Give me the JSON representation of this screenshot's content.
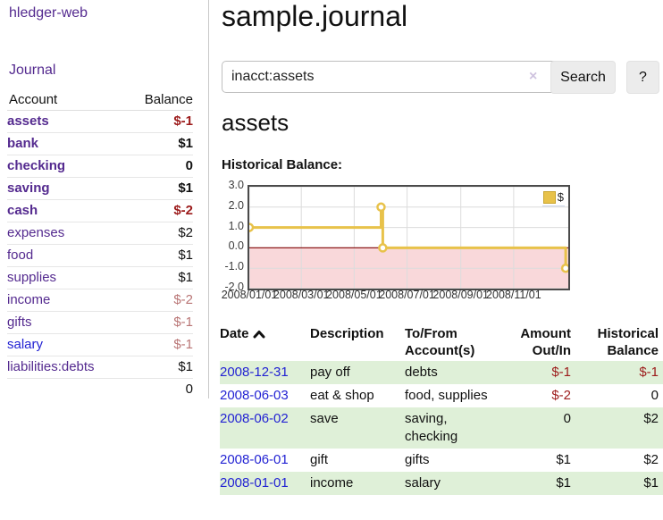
{
  "app": {
    "brand": "hledger-web",
    "nav_journal": "Journal"
  },
  "sidebar": {
    "accounts_header": {
      "account": "Account",
      "balance": "Balance"
    },
    "accounts": [
      {
        "name": "assets",
        "balance": "$-1",
        "depth": 1,
        "bold": true,
        "balance_style": "neg-strong",
        "link": "visited"
      },
      {
        "name": "bank",
        "balance": "$1",
        "depth": 2,
        "bold": true,
        "balance_style": "",
        "link": "visited"
      },
      {
        "name": "checking",
        "balance": "0",
        "depth": 3,
        "bold": true,
        "balance_style": "",
        "link": "visited"
      },
      {
        "name": "saving",
        "balance": "$1",
        "depth": 3,
        "bold": true,
        "balance_style": "",
        "link": "visited"
      },
      {
        "name": "cash",
        "balance": "$-2",
        "depth": 2,
        "bold": true,
        "balance_style": "neg-strong",
        "link": "visited"
      },
      {
        "name": "expenses",
        "balance": "$2",
        "depth": 1,
        "bold": false,
        "balance_style": "",
        "link": "visited"
      },
      {
        "name": "food",
        "balance": "$1",
        "depth": 2,
        "bold": false,
        "balance_style": "",
        "link": "visited"
      },
      {
        "name": "supplies",
        "balance": "$1",
        "depth": 2,
        "bold": false,
        "balance_style": "",
        "link": "visited"
      },
      {
        "name": "income",
        "balance": "$-2",
        "depth": 1,
        "bold": false,
        "balance_style": "neg-soft",
        "link": "visited"
      },
      {
        "name": "gifts",
        "balance": "$-1",
        "depth": 2,
        "bold": false,
        "balance_style": "neg-soft",
        "link": "visited"
      },
      {
        "name": "salary",
        "balance": "$-1",
        "depth": 2,
        "bold": false,
        "balance_style": "neg-soft",
        "link": "unvisited"
      },
      {
        "name": "liabilities:debts",
        "balance": "$1",
        "depth": 1,
        "bold": false,
        "balance_style": "",
        "link": "visited"
      }
    ],
    "total": "0"
  },
  "header": {
    "title": "sample.journal"
  },
  "search": {
    "value": "inacct:assets",
    "clear_icon": "×",
    "button_label": "Search",
    "help_label": "?"
  },
  "account_page": {
    "title": "assets",
    "chart_label": "Historical Balance:"
  },
  "chart_data": {
    "type": "line",
    "title": "Historical Balance",
    "legend": {
      "label": "$",
      "position": "top-right"
    },
    "series": [
      {
        "name": "$",
        "color": "#e8c24a",
        "steps": true,
        "points": [
          [
            "2008-01-01",
            1
          ],
          [
            "2008-06-01",
            2
          ],
          [
            "2008-06-03",
            0
          ],
          [
            "2008-12-31",
            -1
          ]
        ]
      }
    ],
    "xlim": [
      "2008-01-01",
      "2009-01-03"
    ],
    "ylim": [
      -2,
      3
    ],
    "yticks": [
      {
        "v": 3,
        "label": "3.0"
      },
      {
        "v": 2,
        "label": "2.0"
      },
      {
        "v": 1,
        "label": "1.0"
      },
      {
        "v": 0,
        "label": "0.0"
      },
      {
        "v": -1,
        "label": "-1.0"
      },
      {
        "v": -2,
        "label": "-2.0"
      }
    ],
    "xticks": [
      {
        "t": "2008-01-01",
        "label": "2008/01/01"
      },
      {
        "t": "2008-03-01",
        "label": "2008/03/01"
      },
      {
        "t": "2008-05-01",
        "label": "2008/05/01"
      },
      {
        "t": "2008-07-01",
        "label": "2008/07/01"
      },
      {
        "t": "2008-09-01",
        "label": "2008/09/01"
      },
      {
        "t": "2008-11-01",
        "label": "2008/11/01"
      }
    ],
    "grid": true,
    "grid_color": "#dcdcdc",
    "negative_region_color": "#f9d8da",
    "zero_line_color": "#8e1a1a",
    "line_width": 3,
    "point_fill": "#ffffff"
  },
  "register": {
    "columns": [
      {
        "line1": "Date",
        "line2": "",
        "sortable": true
      },
      {
        "line1": "Description",
        "line2": ""
      },
      {
        "line1": "To/From",
        "line2": "Account(s)"
      },
      {
        "line1": "Amount",
        "line2": "Out/In"
      },
      {
        "line1": "Historical",
        "line2": "Balance"
      }
    ],
    "rows": [
      {
        "date": "2008-12-31",
        "description": "pay off",
        "accounts": "debts",
        "amount": "$-1",
        "amount_style": "neg-strong",
        "balance": "$-1",
        "balance_style": "neg-strong",
        "shaded": true
      },
      {
        "date": "2008-06-03",
        "description": "eat & shop",
        "accounts": "food, supplies",
        "amount": "$-2",
        "amount_style": "neg-strong",
        "balance": "0",
        "balance_style": "",
        "shaded": false
      },
      {
        "date": "2008-06-02",
        "description": "save",
        "accounts": "saving, checking",
        "amount": "0",
        "amount_style": "",
        "balance": "$2",
        "balance_style": "",
        "shaded": true
      },
      {
        "date": "2008-06-01",
        "description": "gift",
        "accounts": "gifts",
        "amount": "$1",
        "amount_style": "",
        "balance": "$2",
        "balance_style": "",
        "shaded": false
      },
      {
        "date": "2008-01-01",
        "description": "income",
        "accounts": "salary",
        "amount": "$1",
        "amount_style": "",
        "balance": "$1",
        "balance_style": "",
        "shaded": true
      }
    ]
  },
  "colors": {
    "link_purple": "#542a8f",
    "link_blue": "#2323d3",
    "negative_strong": "#9c1b1b",
    "negative_soft": "#b97575",
    "row_stripe_green": "#dff0d8",
    "chart_gold": "#e8c24a",
    "chart_negative_pink": "#f9d8da",
    "chart_zero_red": "#8e1a1a"
  }
}
